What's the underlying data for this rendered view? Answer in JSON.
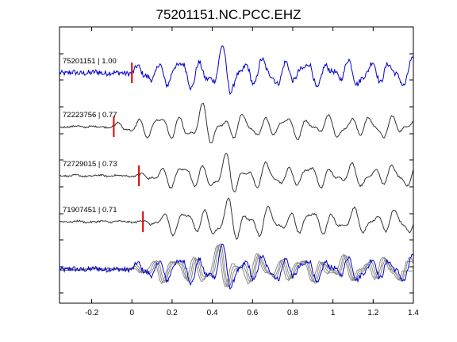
{
  "chart_data": {
    "type": "line",
    "title": "75201151.NC.PCC.EHZ",
    "xlabel": "",
    "ylabel": "",
    "xlim": [
      -0.36,
      1.4
    ],
    "xticks": [
      -0.2,
      0,
      0.2,
      0.4,
      0.6,
      0.8,
      1,
      1.2,
      1.4
    ],
    "grid": false,
    "colors": {
      "master": "#0000cc",
      "other": "#333333",
      "overlay_other": "#8a8a8a",
      "pick": "#e00000"
    },
    "series": [
      {
        "name": "75201151 | 1.00",
        "event": "75201151",
        "cc": 1.0,
        "pick_time": 0.0,
        "color": "#0000cc"
      },
      {
        "name": "72223756 | 0.77",
        "event": "72223756",
        "cc": 0.77,
        "pick_time": -0.09,
        "color": "#333333"
      },
      {
        "name": "72729015 | 0.73",
        "event": "72729015",
        "cc": 0.73,
        "pick_time": 0.035,
        "color": "#333333"
      },
      {
        "name": "71907451 | 0.71",
        "event": "71907451",
        "cc": 0.71,
        "pick_time": 0.055,
        "color": "#333333"
      }
    ]
  }
}
